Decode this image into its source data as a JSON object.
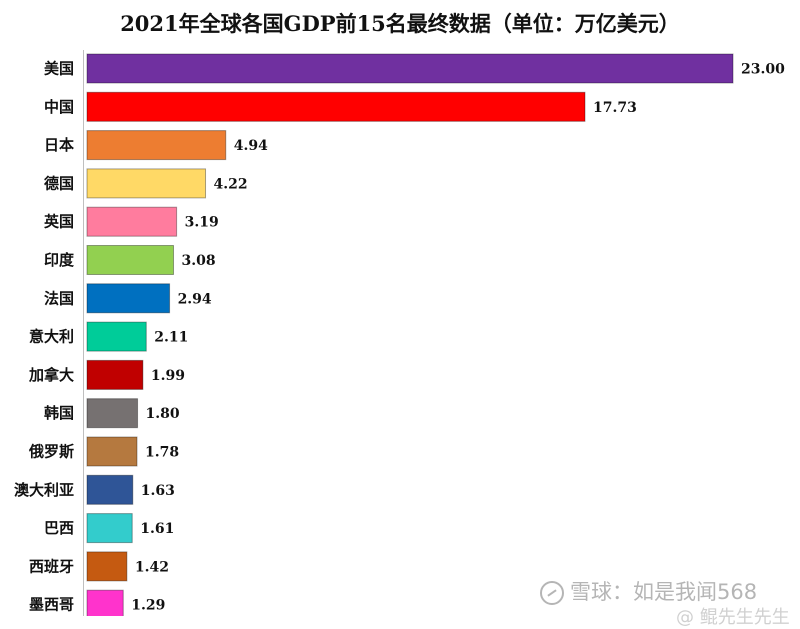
{
  "chart_data": {
    "type": "bar",
    "orientation": "horizontal",
    "title": "2021年全球各国GDP前15名最终数据（单位：万亿美元）",
    "categories": [
      "美国",
      "中国",
      "日本",
      "德国",
      "英国",
      "印度",
      "法国",
      "意大利",
      "加拿大",
      "韩国",
      "俄罗斯",
      "澳大利亚",
      "巴西",
      "西班牙",
      "墨西哥"
    ],
    "values": [
      23.0,
      17.73,
      4.94,
      4.22,
      3.19,
      3.08,
      2.94,
      2.11,
      1.99,
      1.8,
      1.78,
      1.63,
      1.61,
      1.42,
      1.29
    ],
    "value_labels": [
      "23.00",
      "17.73",
      "4.94",
      "4.22",
      "3.19",
      "3.08",
      "2.94",
      "2.11",
      "1.99",
      "1.80",
      "1.78",
      "1.63",
      "1.61",
      "1.42",
      "1.29"
    ],
    "colors": [
      "#7030A0",
      "#FF0000",
      "#ED7D31",
      "#FFD966",
      "#FF7C9E",
      "#92D050",
      "#0070C0",
      "#00CC99",
      "#C00000",
      "#767171",
      "#B5793F",
      "#2F5597",
      "#33CCCC",
      "#C55A11",
      "#FF33CC"
    ],
    "xlim": [
      0,
      23
    ],
    "grid": false,
    "legend": "none"
  },
  "watermark": {
    "text": "雪球：如是我闻568",
    "text2": "@ 鲲先生先生"
  }
}
